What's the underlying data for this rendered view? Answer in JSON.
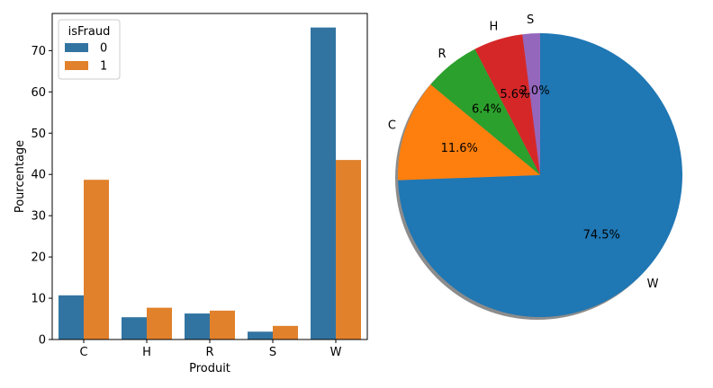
{
  "chart_data": [
    {
      "type": "bar",
      "xlabel": "Produit",
      "ylabel": "Pourcentage",
      "categories": [
        "C",
        "H",
        "R",
        "S",
        "W"
      ],
      "ylim": [
        0,
        79
      ],
      "yticks": [
        0,
        10,
        20,
        30,
        40,
        50,
        60,
        70
      ],
      "legend": {
        "title": "isFraud",
        "placement": "upper-left"
      },
      "series": [
        {
          "name": "0",
          "color": "#3274a1",
          "values": [
            10.7,
            5.4,
            6.3,
            1.9,
            75.6
          ]
        },
        {
          "name": "1",
          "color": "#e1812c",
          "values": [
            38.7,
            7.7,
            7.0,
            3.3,
            43.5
          ]
        }
      ],
      "grid": false
    },
    {
      "type": "pie",
      "shadow": true,
      "slices": [
        {
          "label": "W",
          "value": 74.5,
          "pct_label": "74.5%",
          "color": "#1f77b4"
        },
        {
          "label": "C",
          "value": 11.6,
          "pct_label": "11.6%",
          "color": "#ff7f0e"
        },
        {
          "label": "R",
          "value": 6.4,
          "pct_label": "6.4%",
          "color": "#2ca02c"
        },
        {
          "label": "H",
          "value": 5.6,
          "pct_label": "5.6%",
          "color": "#d62728"
        },
        {
          "label": "S",
          "value": 2.0,
          "pct_label": "2.0%",
          "color": "#9467bd"
        }
      ]
    }
  ]
}
